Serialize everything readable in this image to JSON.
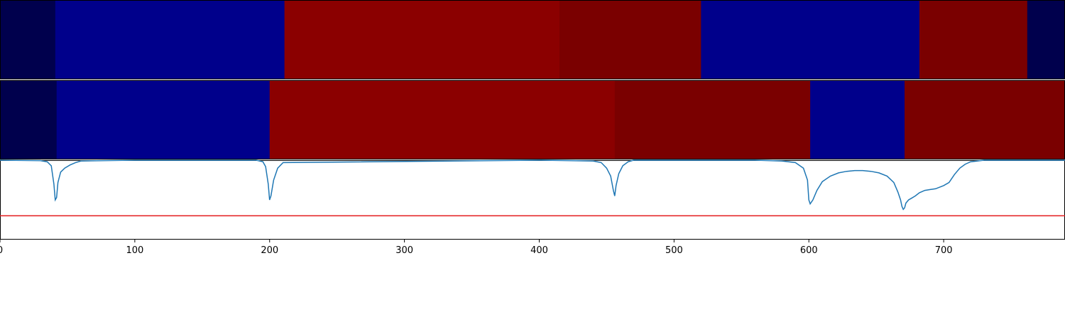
{
  "chart_data": [
    {
      "type": "heatmap",
      "name": "segmentation-track-1",
      "segments": [
        {
          "start": 0,
          "end": 41,
          "color": "#00004d"
        },
        {
          "start": 41,
          "end": 211,
          "color": "#00008b"
        },
        {
          "start": 211,
          "end": 415,
          "color": "#8b0000"
        },
        {
          "start": 415,
          "end": 520,
          "color": "#7a0000"
        },
        {
          "start": 520,
          "end": 682,
          "color": "#00008b"
        },
        {
          "start": 682,
          "end": 762,
          "color": "#7a0000"
        },
        {
          "start": 762,
          "end": 790,
          "color": "#00004d"
        }
      ]
    },
    {
      "type": "heatmap",
      "name": "segmentation-track-2",
      "segments": [
        {
          "start": 0,
          "end": 42,
          "color": "#00004d"
        },
        {
          "start": 42,
          "end": 200,
          "color": "#00008b"
        },
        {
          "start": 200,
          "end": 456,
          "color": "#8b0000"
        },
        {
          "start": 456,
          "end": 601,
          "color": "#7a0000"
        },
        {
          "start": 601,
          "end": 671,
          "color": "#00008b"
        },
        {
          "start": 671,
          "end": 790,
          "color": "#7a0000"
        }
      ]
    },
    {
      "type": "line",
      "xlim": [
        0,
        790
      ],
      "ylim": [
        0,
        1
      ],
      "threshold": 0.3,
      "threshold_color": "#e41a1c",
      "line_color": "#1f77b4",
      "x_ticks": [
        0,
        100,
        200,
        300,
        400,
        500,
        600,
        700
      ],
      "x_tick_labels": [
        "0",
        "100",
        "200",
        "300",
        "400",
        "500",
        "600",
        "700"
      ],
      "series": [
        {
          "x": [
            0,
            30,
            35,
            38,
            40,
            41,
            42,
            43,
            45,
            48,
            52,
            56,
            60,
            100,
            150,
            190,
            195,
            197,
            199,
            200,
            201,
            203,
            206,
            210,
            400,
            440,
            446,
            450,
            453,
            455,
            456,
            457,
            459,
            462,
            466,
            470,
            560,
            580,
            590,
            596,
            599,
            600,
            601,
            603,
            606,
            610,
            616,
            622,
            628,
            634,
            640,
            646,
            652,
            658,
            663,
            666,
            668,
            669,
            670,
            671,
            672,
            674,
            676,
            679,
            682,
            686,
            690,
            694,
            697,
            700,
            704,
            708,
            712,
            716,
            720,
            730,
            790
          ],
          "y": [
            1.0,
            0.995,
            0.98,
            0.93,
            0.7,
            0.5,
            0.53,
            0.72,
            0.85,
            0.9,
            0.94,
            0.97,
            0.99,
            1.0,
            1.0,
            1.0,
            0.98,
            0.92,
            0.7,
            0.5,
            0.55,
            0.75,
            0.9,
            0.97,
            1.0,
            0.99,
            0.97,
            0.9,
            0.8,
            0.62,
            0.55,
            0.68,
            0.83,
            0.93,
            0.98,
            1.0,
            1.0,
            0.99,
            0.97,
            0.9,
            0.75,
            0.5,
            0.45,
            0.5,
            0.62,
            0.73,
            0.8,
            0.84,
            0.86,
            0.87,
            0.87,
            0.86,
            0.84,
            0.8,
            0.72,
            0.6,
            0.5,
            0.42,
            0.38,
            0.4,
            0.46,
            0.5,
            0.52,
            0.55,
            0.59,
            0.62,
            0.63,
            0.64,
            0.66,
            0.68,
            0.72,
            0.82,
            0.9,
            0.95,
            0.98,
            1.0,
            1.0
          ]
        }
      ]
    }
  ]
}
